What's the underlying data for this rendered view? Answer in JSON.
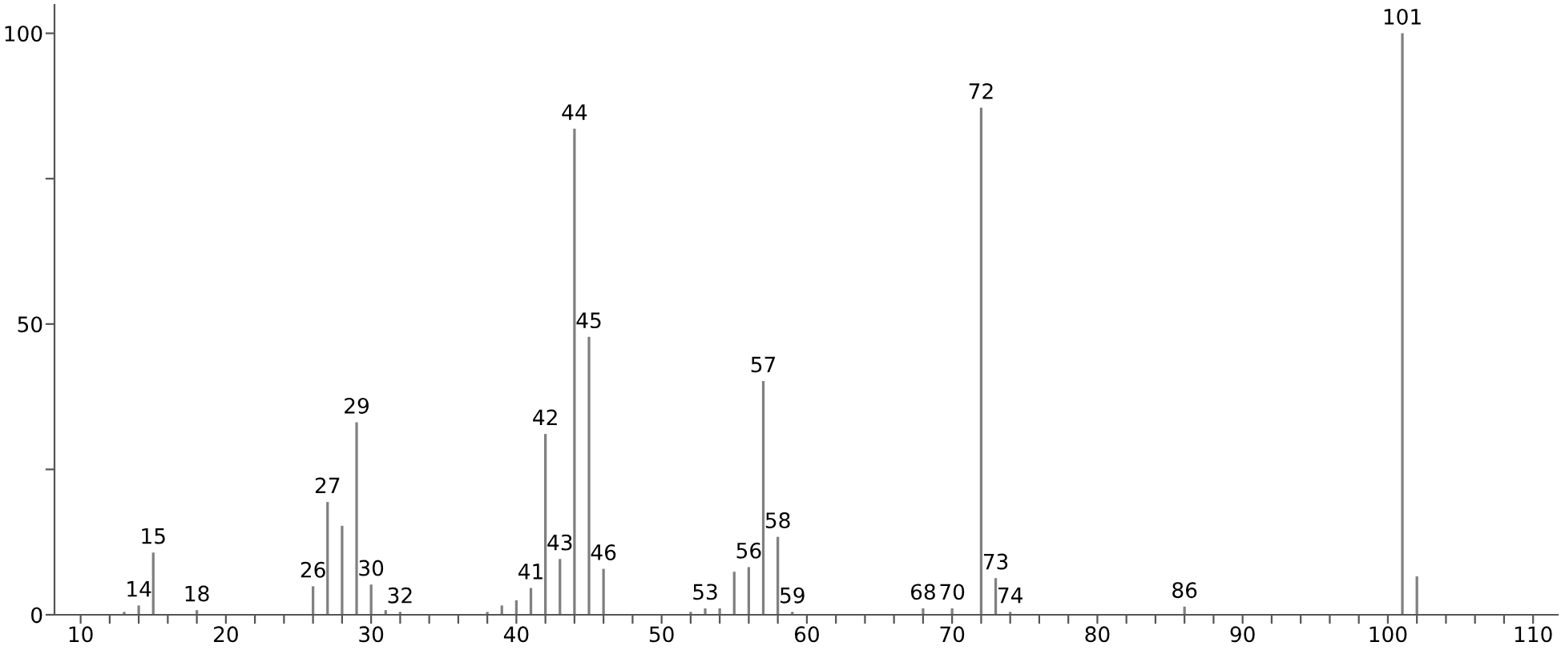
{
  "chart_data": {
    "type": "bar",
    "x": [
      13,
      14,
      15,
      18,
      26,
      27,
      28,
      29,
      30,
      31,
      32,
      38,
      39,
      40,
      41,
      42,
      43,
      44,
      45,
      46,
      52,
      53,
      54,
      55,
      56,
      57,
      58,
      59,
      68,
      70,
      72,
      73,
      74,
      86,
      101,
      102
    ],
    "values": [
      0.5,
      1.6,
      10.7,
      0.8,
      4.9,
      19.4,
      15.3,
      33.1,
      5.2,
      0.8,
      0.5,
      0.5,
      1.6,
      2.5,
      4.6,
      31.1,
      9.6,
      83.6,
      47.8,
      7.9,
      0.5,
      1.1,
      1.1,
      7.4,
      8.2,
      40.2,
      13.4,
      0.5,
      1.1,
      1.1,
      87.2,
      6.3,
      0.5,
      1.4,
      100,
      6.6
    ],
    "color": "#808080",
    "xlim": [
      8.2,
      111.7
    ],
    "ylim": [
      0,
      104.9
    ],
    "xticks": [
      {
        "value": 10,
        "label": "10"
      },
      {
        "value": 12,
        "label": null
      },
      {
        "value": 14,
        "label": null
      },
      {
        "value": 16,
        "label": null
      },
      {
        "value": 18,
        "label": null
      },
      {
        "value": 20,
        "label": "20"
      },
      {
        "value": 22,
        "label": null
      },
      {
        "value": 24,
        "label": null
      },
      {
        "value": 26,
        "label": null
      },
      {
        "value": 28,
        "label": null
      },
      {
        "value": 30,
        "label": "30"
      },
      {
        "value": 32,
        "label": null
      },
      {
        "value": 34,
        "label": null
      },
      {
        "value": 36,
        "label": null
      },
      {
        "value": 38,
        "label": null
      },
      {
        "value": 40,
        "label": "40"
      },
      {
        "value": 42,
        "label": null
      },
      {
        "value": 44,
        "label": null
      },
      {
        "value": 46,
        "label": null
      },
      {
        "value": 48,
        "label": null
      },
      {
        "value": 50,
        "label": "50"
      },
      {
        "value": 52,
        "label": null
      },
      {
        "value": 54,
        "label": null
      },
      {
        "value": 56,
        "label": null
      },
      {
        "value": 58,
        "label": null
      },
      {
        "value": 60,
        "label": "60"
      },
      {
        "value": 62,
        "label": null
      },
      {
        "value": 64,
        "label": null
      },
      {
        "value": 66,
        "label": null
      },
      {
        "value": 68,
        "label": null
      },
      {
        "value": 70,
        "label": "70"
      },
      {
        "value": 72,
        "label": null
      },
      {
        "value": 74,
        "label": null
      },
      {
        "value": 76,
        "label": null
      },
      {
        "value": 78,
        "label": null
      },
      {
        "value": 80,
        "label": "80"
      },
      {
        "value": 82,
        "label": null
      },
      {
        "value": 84,
        "label": null
      },
      {
        "value": 86,
        "label": null
      },
      {
        "value": 88,
        "label": null
      },
      {
        "value": 90,
        "label": "90"
      },
      {
        "value": 92,
        "label": null
      },
      {
        "value": 94,
        "label": null
      },
      {
        "value": 96,
        "label": null
      },
      {
        "value": 98,
        "label": null
      },
      {
        "value": 100,
        "label": "100"
      },
      {
        "value": 102,
        "label": null
      },
      {
        "value": 104,
        "label": null
      },
      {
        "value": 106,
        "label": null
      },
      {
        "value": 108,
        "label": null
      },
      {
        "value": 110,
        "label": "110"
      }
    ],
    "yticks": [
      0,
      {
        "value": 25,
        "label": null
      },
      50,
      {
        "value": 75,
        "label": null
      },
      100
    ],
    "grid": false,
    "annotations": [
      {
        "text": "14",
        "x": 14,
        "y": 1.6
      },
      {
        "text": "15",
        "x": 15,
        "y": 10.7
      },
      {
        "text": "18",
        "x": 18,
        "y": 0.8
      },
      {
        "text": "26",
        "x": 26,
        "y": 4.9
      },
      {
        "text": "27",
        "x": 27,
        "y": 19.4
      },
      {
        "text": "29",
        "x": 29,
        "y": 33.1
      },
      {
        "text": "30",
        "x": 30,
        "y": 5.2
      },
      {
        "text": "32",
        "x": 32,
        "y": 0.5
      },
      {
        "text": "41",
        "x": 41,
        "y": 4.6
      },
      {
        "text": "42",
        "x": 42,
        "y": 31.1
      },
      {
        "text": "43",
        "x": 43,
        "y": 9.6
      },
      {
        "text": "44",
        "x": 44,
        "y": 83.6
      },
      {
        "text": "45",
        "x": 45,
        "y": 47.8
      },
      {
        "text": "46",
        "x": 46,
        "y": 7.9
      },
      {
        "text": "53",
        "x": 53,
        "y": 1.1
      },
      {
        "text": "56",
        "x": 56,
        "y": 8.2
      },
      {
        "text": "57",
        "x": 57,
        "y": 40.2
      },
      {
        "text": "58",
        "x": 58,
        "y": 13.4
      },
      {
        "text": "59",
        "x": 59,
        "y": 0.5
      },
      {
        "text": "68",
        "x": 68,
        "y": 1.1
      },
      {
        "text": "70",
        "x": 70,
        "y": 1.1
      },
      {
        "text": "72",
        "x": 72,
        "y": 87.2
      },
      {
        "text": "73",
        "x": 73,
        "y": 6.3
      },
      {
        "text": "74",
        "x": 74,
        "y": 0.5
      },
      {
        "text": "86",
        "x": 86,
        "y": 1.4
      },
      {
        "text": "101",
        "x": 101,
        "y": 100
      }
    ]
  }
}
